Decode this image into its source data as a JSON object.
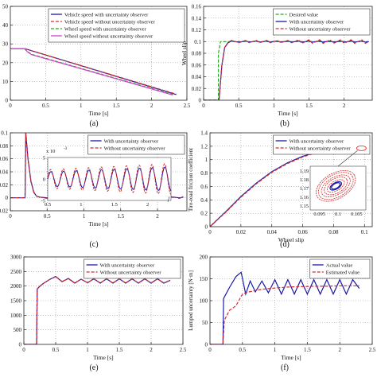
{
  "chart_data": [
    {
      "id": "a",
      "type": "line",
      "caption": "(a)",
      "xlabel": "Time [s]",
      "ylabel": "",
      "xlim": [
        0,
        2.5
      ],
      "ylim": [
        0,
        50
      ],
      "xticks": [
        0,
        0.5,
        1,
        1.5,
        2,
        2.5
      ],
      "yticks": [
        0,
        10,
        20,
        30,
        40,
        50
      ],
      "grid": true,
      "legend": "top-right",
      "series": [
        {
          "name": "Vehicle speed with uncertainty observer",
          "color": "#1a1aa8",
          "dash": "",
          "x": [
            0,
            0.2,
            2.35
          ],
          "y": [
            27.5,
            27.5,
            3
          ]
        },
        {
          "name": "Vehicle speed without uncertainty observer",
          "color": "#d62a2a",
          "dash": "4,2",
          "x": [
            0,
            0.2,
            2.35
          ],
          "y": [
            27.5,
            27.5,
            3.2
          ]
        },
        {
          "name": "Wheel speed with uncertainty observer",
          "color": "#22aa22",
          "dash": "4,2",
          "x": [
            0,
            0.2,
            0.24,
            0.3,
            2.3
          ],
          "y": [
            27.5,
            27.5,
            26,
            24.5,
            3
          ]
        },
        {
          "name": "Wheel speed without uncertainty observer",
          "color": "#d040d0",
          "dash": "",
          "x": [
            0,
            0.2,
            0.24,
            0.3,
            2.3
          ],
          "y": [
            27.5,
            27.5,
            25.8,
            24.3,
            2.8
          ]
        }
      ]
    },
    {
      "id": "b",
      "type": "line",
      "caption": "(b)",
      "xlabel": "Time [s]",
      "ylabel": "Wheel slip",
      "xlim": [
        0,
        2.4
      ],
      "ylim": [
        0,
        0.16
      ],
      "xticks": [
        0,
        0.5,
        1,
        1.5,
        2
      ],
      "yticks": [
        0,
        0.02,
        0.04,
        0.06,
        0.08,
        0.1,
        0.12,
        0.14,
        0.16
      ],
      "grid": true,
      "legend": "top-right",
      "series": [
        {
          "name": "Desired value",
          "color": "#22aa22",
          "dash": "4,2",
          "x": [
            0,
            0.21,
            0.21,
            0.24,
            2.35
          ],
          "y": [
            0,
            0,
            0.08,
            0.1,
            0.1
          ]
        },
        {
          "name": "With uncertainty observer",
          "color": "#1a1aa8",
          "dash": "",
          "x": [
            0,
            0.22,
            0.26,
            0.3,
            0.35,
            0.4,
            0.45,
            0.5,
            0.55,
            0.6,
            0.65,
            0.7,
            0.75,
            0.8,
            0.85,
            0.9,
            0.95,
            1.0,
            1.05,
            1.1,
            1.15,
            1.2,
            1.25,
            1.3,
            1.35,
            1.4,
            1.45,
            1.5,
            1.55,
            1.6,
            1.65,
            1.7,
            1.75,
            1.8,
            1.85,
            1.9,
            1.95,
            2.0,
            2.05,
            2.1,
            2.15,
            2.2,
            2.25,
            2.3,
            2.35
          ],
          "y": [
            0,
            0,
            0.06,
            0.09,
            0.098,
            0.101,
            0.1,
            0.099,
            0.1,
            0.101,
            0.099,
            0.1,
            0.101,
            0.099,
            0.1,
            0.101,
            0.099,
            0.1,
            0.101,
            0.099,
            0.1,
            0.101,
            0.099,
            0.1,
            0.101,
            0.099,
            0.1,
            0.101,
            0.099,
            0.1,
            0.101,
            0.099,
            0.1,
            0.101,
            0.099,
            0.1,
            0.101,
            0.099,
            0.1,
            0.101,
            0.099,
            0.1,
            0.101,
            0.099,
            0.1
          ]
        },
        {
          "name": "Without uncertainty observer",
          "color": "#d62a2a",
          "dash": "4,2",
          "x": [
            0,
            0.22,
            0.26,
            0.3,
            0.35,
            0.4,
            0.45,
            0.5,
            0.55,
            0.6,
            0.65,
            0.7,
            0.75,
            0.8,
            0.85,
            0.9,
            0.95,
            1.0,
            1.05,
            1.1,
            1.15,
            1.2,
            1.25,
            1.3,
            1.35,
            1.4,
            1.45,
            1.5,
            1.55,
            1.6,
            1.65,
            1.7,
            1.75,
            1.8,
            1.85,
            1.9,
            1.95,
            2.0,
            2.05,
            2.1,
            2.15,
            2.2,
            2.25,
            2.3,
            2.35
          ],
          "y": [
            0,
            0,
            0.06,
            0.09,
            0.099,
            0.102,
            0.1,
            0.098,
            0.1,
            0.102,
            0.098,
            0.1,
            0.102,
            0.098,
            0.1,
            0.102,
            0.098,
            0.1,
            0.102,
            0.098,
            0.1,
            0.102,
            0.098,
            0.1,
            0.103,
            0.097,
            0.1,
            0.103,
            0.097,
            0.1,
            0.103,
            0.097,
            0.1,
            0.103,
            0.097,
            0.1,
            0.103,
            0.097,
            0.1,
            0.103,
            0.097,
            0.1,
            0.103,
            0.097,
            0.1
          ]
        }
      ]
    },
    {
      "id": "c",
      "type": "line",
      "caption": "(c)",
      "xlabel": "Time [s]",
      "ylabel": "",
      "xlim": [
        0,
        2.4
      ],
      "ylim": [
        -0.02,
        0.1
      ],
      "xticks": [
        0,
        0.5,
        1,
        1.5,
        2
      ],
      "yticks": [
        -0.02,
        0,
        0.02,
        0.04,
        0.06,
        0.08,
        0.1
      ],
      "grid": true,
      "legend": "top-right",
      "series": [
        {
          "name": "With uncertainty observer",
          "color": "#1a1aa8",
          "dash": "",
          "x": [
            0,
            0.2,
            0.21,
            0.24,
            0.28,
            0.32,
            0.36,
            0.4,
            0.5,
            0.6,
            0.7,
            0.8,
            0.9,
            1.0,
            1.1,
            1.2,
            1.3,
            1.4,
            1.5,
            1.6,
            1.7,
            1.8,
            1.9,
            2.0,
            2.1,
            2.2,
            2.3,
            2.35
          ],
          "y": [
            0,
            0,
            0.1,
            0.06,
            0.025,
            0.008,
            0.002,
            0.001,
            0.0,
            0.001,
            0.0,
            0.001,
            0.0,
            0.001,
            0.0,
            0.001,
            0.0,
            0.001,
            0.0,
            0.001,
            0.0,
            0.001,
            0.0,
            0.001,
            0.0,
            0.001,
            0.0,
            0.001
          ]
        },
        {
          "name": "Without uncertainty observer",
          "color": "#d62a2a",
          "dash": "4,2",
          "x": [
            0,
            0.2,
            0.21,
            0.24,
            0.28,
            0.32,
            0.36,
            0.4,
            0.5,
            0.6,
            0.7,
            0.8,
            0.9,
            1.0,
            1.1,
            1.2,
            1.3,
            1.4,
            1.5,
            1.6,
            1.7,
            1.8,
            1.9,
            2.0,
            2.1,
            2.2,
            2.3,
            2.35
          ],
          "y": [
            0,
            0,
            0.1,
            0.06,
            0.026,
            0.009,
            0.002,
            0.001,
            -0.001,
            0.002,
            -0.001,
            0.002,
            -0.001,
            0.002,
            -0.001,
            0.002,
            -0.001,
            0.002,
            -0.001,
            0.002,
            -0.001,
            0.002,
            -0.001,
            0.002,
            -0.001,
            0.002,
            -0.001,
            0.002
          ]
        }
      ],
      "inset": {
        "exponent_label": "x 10",
        "exponent": "-3",
        "xlim": [
          0.5,
          2.35
        ],
        "ylim": [
          -5,
          5
        ],
        "xticks": [
          0.5,
          1,
          1.5,
          2
        ],
        "yticks": [
          -5,
          0,
          5
        ]
      }
    },
    {
      "id": "d",
      "type": "line",
      "caption": "(d)",
      "xlabel": "Wheel slip",
      "ylabel": "Tire-road friction coefficient",
      "xlim": [
        0,
        0.105
      ],
      "ylim": [
        0,
        1.4
      ],
      "xticks": [
        0,
        0.02,
        0.04,
        0.06,
        0.08,
        0.1
      ],
      "yticks": [
        0,
        0.2,
        0.4,
        0.6,
        0.8,
        1,
        1.2,
        1.4
      ],
      "grid": true,
      "legend": "top-right",
      "series": [
        {
          "name": "With uncertainty observer",
          "color": "#1a1aa8",
          "dash": "",
          "x": [
            0,
            0.01,
            0.02,
            0.03,
            0.04,
            0.05,
            0.06,
            0.07,
            0.08,
            0.09,
            0.1
          ],
          "y": [
            0,
            0.22,
            0.45,
            0.65,
            0.82,
            0.95,
            1.05,
            1.12,
            1.16,
            1.17,
            1.17
          ]
        },
        {
          "name": "Without uncertainty observer",
          "color": "#d62a2a",
          "dash": "4,2",
          "x": [
            0,
            0.01,
            0.02,
            0.03,
            0.04,
            0.05,
            0.06,
            0.07,
            0.08,
            0.09,
            0.1
          ],
          "y": [
            0,
            0.21,
            0.44,
            0.64,
            0.81,
            0.94,
            1.04,
            1.11,
            1.15,
            1.165,
            1.17
          ]
        }
      ],
      "inset": {
        "xticks": [
          "0.095",
          "0.1",
          "0.105"
        ],
        "yticks": [
          "1.15",
          "1.16",
          "1.17",
          "1.18",
          "1.19"
        ]
      }
    },
    {
      "id": "e",
      "type": "line",
      "caption": "(e)",
      "xlabel": "Time [s]",
      "ylabel": "",
      "xlim": [
        0,
        2.5
      ],
      "ylim": [
        0,
        3000
      ],
      "xticks": [
        0,
        0.5,
        1,
        1.5,
        2,
        2.5
      ],
      "yticks": [
        0,
        500,
        1000,
        1500,
        2000,
        2500,
        3000
      ],
      "grid": true,
      "legend": "top-right",
      "series": [
        {
          "name": "With uncertainty observer",
          "color": "#1a1aa8",
          "dash": "",
          "x": [
            0,
            0.2,
            0.21,
            0.25,
            0.3,
            0.4,
            0.5,
            0.6,
            0.7,
            0.8,
            0.9,
            1.0,
            1.1,
            1.2,
            1.3,
            1.4,
            1.5,
            1.6,
            1.7,
            1.8,
            1.9,
            2.0,
            2.1,
            2.2,
            2.3
          ],
          "y": [
            0,
            0,
            1900,
            1990,
            2080,
            2220,
            2330,
            2150,
            2260,
            2100,
            2240,
            2110,
            2250,
            2100,
            2250,
            2100,
            2250,
            2100,
            2250,
            2100,
            2250,
            2100,
            2250,
            2100,
            2200
          ]
        },
        {
          "name": "Without uncertainty observer",
          "color": "#d62a2a",
          "dash": "4,2",
          "x": [
            0,
            0.2,
            0.21,
            0.25,
            0.3,
            0.4,
            0.5,
            0.6,
            0.7,
            0.8,
            0.9,
            1.0,
            1.1,
            1.2,
            1.3,
            1.4,
            1.5,
            1.6,
            1.7,
            1.8,
            1.9,
            2.0,
            2.1,
            2.2,
            2.3
          ],
          "y": [
            0,
            0,
            1900,
            1990,
            2080,
            2220,
            2320,
            2160,
            2250,
            2110,
            2230,
            2120,
            2240,
            2110,
            2240,
            2110,
            2240,
            2110,
            2240,
            2110,
            2240,
            2110,
            2240,
            2110,
            2190
          ]
        }
      ]
    },
    {
      "id": "f",
      "type": "line",
      "caption": "(f)",
      "xlabel": "Time [s]",
      "ylabel": "Lumped uncertainty [N·m]",
      "xlim": [
        0,
        2.5
      ],
      "ylim": [
        0,
        200
      ],
      "xticks": [
        0,
        0.5,
        1,
        1.5,
        2,
        2.5
      ],
      "yticks": [
        0,
        50,
        100,
        150,
        200
      ],
      "grid": true,
      "legend": "top-right",
      "series": [
        {
          "name": "Actual value",
          "color": "#1a1aa8",
          "dash": "",
          "x": [
            0,
            0.2,
            0.21,
            0.3,
            0.4,
            0.48,
            0.55,
            0.62,
            0.7,
            0.8,
            0.9,
            1.0,
            1.1,
            1.2,
            1.3,
            1.4,
            1.5,
            1.6,
            1.7,
            1.8,
            1.9,
            2.0,
            2.1,
            2.2,
            2.3
          ],
          "y": [
            0,
            0,
            105,
            130,
            155,
            165,
            115,
            145,
            120,
            145,
            118,
            148,
            115,
            148,
            115,
            148,
            115,
            148,
            115,
            148,
            115,
            148,
            115,
            148,
            128
          ]
        },
        {
          "name": "Estimated value",
          "color": "#d62a2a",
          "dash": "4,2",
          "x": [
            0,
            0.2,
            0.22,
            0.3,
            0.4,
            0.5,
            0.55,
            0.6,
            0.8,
            1.0,
            1.2,
            1.4,
            1.6,
            1.8,
            2.0,
            2.2,
            2.3
          ],
          "y": [
            0,
            0,
            55,
            78,
            88,
            115,
            118,
            120,
            126,
            129,
            131,
            132,
            133,
            133,
            134,
            134,
            134
          ]
        }
      ]
    }
  ]
}
